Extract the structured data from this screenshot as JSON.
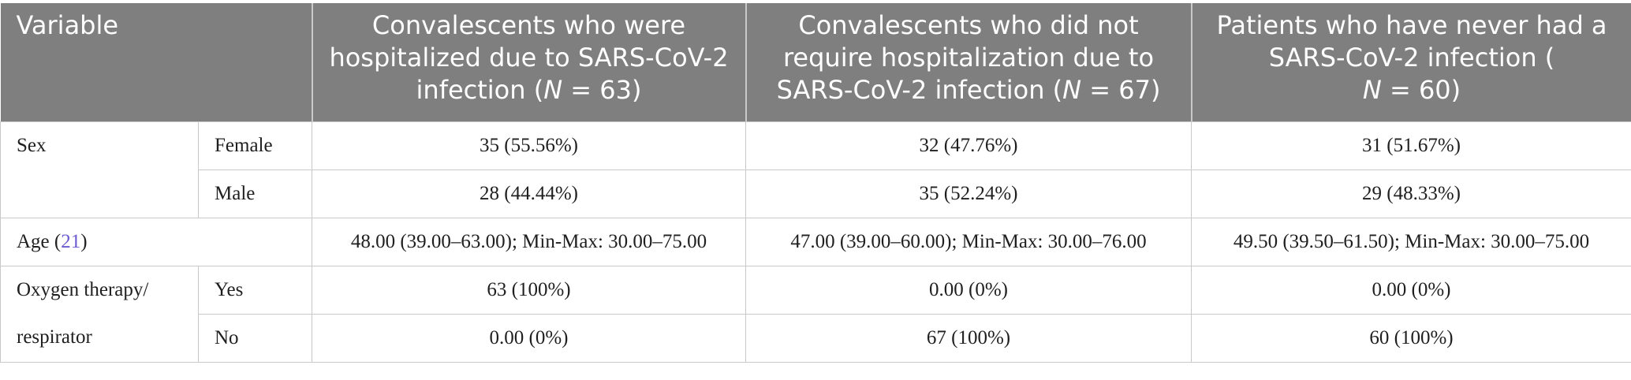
{
  "header": {
    "variable": "Variable",
    "col1": "Convalescents who were hospitalized due to SARS-CoV-2 infection (",
    "col1_n": "N",
    "col1_tail": " = 63)",
    "col2": "Convalescents who did not require hospitalization due to SARS-CoV-2 infection (",
    "col2_n": "N",
    "col2_tail": " = 67)",
    "col3": "Patients who have never had a SARS-CoV-2 infection (",
    "col3_n": "N",
    "col3_tail": " = 60)"
  },
  "rows": {
    "sex": {
      "label": "Sex",
      "female": {
        "label": "Female",
        "values": [
          "35 (55.56%)",
          "32 (47.76%)",
          "31 (51.67%)"
        ]
      },
      "male": {
        "label": "Male",
        "values": [
          "28 (44.44%)",
          "35 (52.24%)",
          "29 (48.33%)"
        ]
      }
    },
    "age": {
      "label": "Age (",
      "ref": "21",
      "label_tail": ")",
      "values": [
        "48.00 (39.00–63.00); Min-Max: 30.00–75.00",
        "47.00 (39.00–60.00); Min-Max: 30.00–76.00",
        "49.50 (39.50–61.50); Min-Max: 30.00–75.00"
      ]
    },
    "oxygen": {
      "label": "Oxygen therapy/ respirator",
      "yes": {
        "label": "Yes",
        "values": [
          "63 (100%)",
          "0.00 (0%)",
          "0.00 (0%)"
        ]
      },
      "no": {
        "label": "No",
        "values": [
          "0.00 (0%)",
          "67 (100%)",
          "60 (100%)"
        ]
      }
    }
  }
}
